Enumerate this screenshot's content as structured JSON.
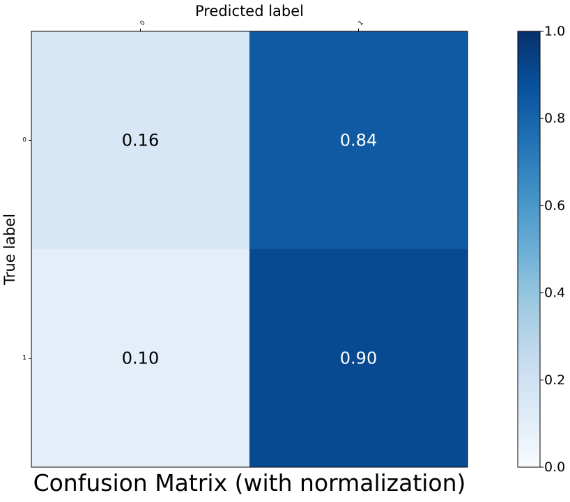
{
  "chart_data": {
    "type": "heatmap",
    "title": "Confusion Matrix (with normalization)",
    "xlabel": "Predicted label",
    "ylabel": "True label",
    "x_categories": [
      "0",
      "1"
    ],
    "y_categories": [
      "0",
      "1"
    ],
    "values": [
      [
        0.16,
        0.84
      ],
      [
        0.1,
        0.9
      ]
    ],
    "cell_labels": [
      [
        "0.16",
        "0.84"
      ],
      [
        "0.10",
        "0.90"
      ]
    ],
    "colormap": "Blues",
    "colorbar": {
      "range": [
        0.0,
        1.0
      ],
      "ticks": [
        "0.0",
        "0.2",
        "0.4",
        "0.6",
        "0.8",
        "1.0"
      ]
    },
    "x_axis_position": "top",
    "grid": false
  }
}
